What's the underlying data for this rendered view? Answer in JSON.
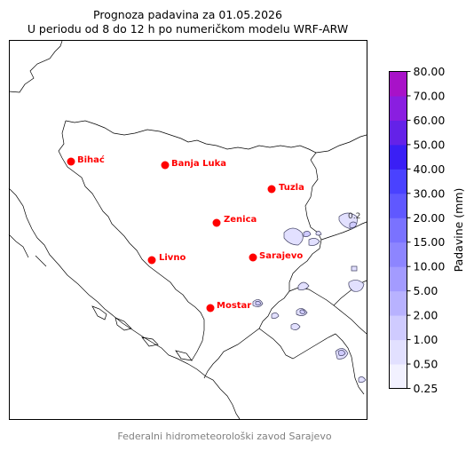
{
  "title": {
    "line1": "Prognoza padavina za 01.05.2026",
    "line2": "U periodu od 8 do 12 h po numeričkom modelu WRF-ARW"
  },
  "cities": [
    {
      "name": "Bihać"
    },
    {
      "name": "Banja Luka"
    },
    {
      "name": "Tuzla"
    },
    {
      "name": "Zenica"
    },
    {
      "name": "Livno"
    },
    {
      "name": "Sarajevo"
    },
    {
      "name": "Mostar"
    }
  ],
  "colorbar": {
    "label": "Padavine (mm)",
    "ticks": [
      "0.25",
      "0.50",
      "1.00",
      "2.00",
      "5.00",
      "10.00",
      "15.00",
      "20.00",
      "30.00",
      "40.00",
      "50.00",
      "60.00",
      "70.00",
      "80.00"
    ],
    "colors": [
      "#f2f1ff",
      "#e2e0ff",
      "#cfcbff",
      "#b8b2ff",
      "#a39bff",
      "#8d85ff",
      "#7a72ff",
      "#6058ff",
      "#4a42ff",
      "#3a1ff5",
      "#6422e8",
      "#8a1ee0",
      "#a812c8"
    ]
  },
  "contour_label": "0.2",
  "credit": "Federalni hidrometeorološki zavod Sarajevo"
}
